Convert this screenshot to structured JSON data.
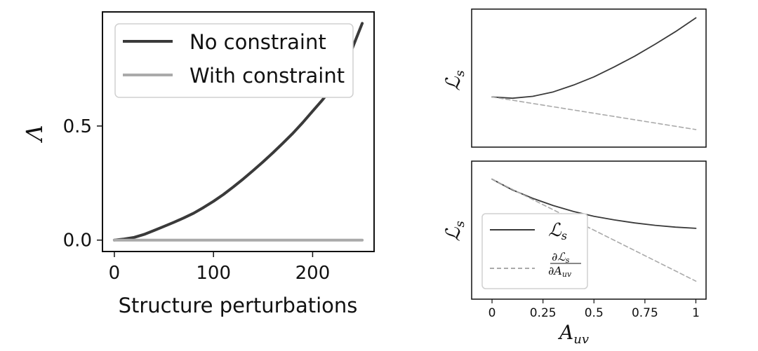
{
  "chart_data": [
    {
      "type": "line",
      "xlabel": "Structure perturbations",
      "ylabel": "Λ",
      "xlim": [
        -12,
        262
      ],
      "ylim": [
        -0.05,
        1.0
      ],
      "xticks": [
        0,
        100,
        200
      ],
      "yticks": [
        0.0,
        0.5
      ],
      "ytick_labels": [
        "0.0",
        "0.5"
      ],
      "legend_position": "top-left",
      "series": [
        {
          "name": "No constraint",
          "color": "#3a3a3a",
          "x": [
            0,
            10,
            20,
            30,
            40,
            50,
            60,
            70,
            80,
            90,
            100,
            110,
            120,
            130,
            140,
            150,
            160,
            170,
            180,
            190,
            200,
            210,
            220,
            230,
            240,
            250
          ],
          "y": [
            0.0,
            0.005,
            0.012,
            0.025,
            0.042,
            0.06,
            0.078,
            0.097,
            0.118,
            0.143,
            0.17,
            0.2,
            0.233,
            0.268,
            0.305,
            0.343,
            0.383,
            0.425,
            0.468,
            0.515,
            0.565,
            0.615,
            0.67,
            0.75,
            0.84,
            0.95
          ]
        },
        {
          "name": "With constraint",
          "color": "#aaaaaa",
          "x": [
            0,
            250
          ],
          "y": [
            0.0,
            0.0
          ]
        }
      ]
    },
    {
      "type": "line",
      "xlabel": "",
      "ylabel": "ℒs",
      "xlim": [
        -0.1,
        1.05
      ],
      "ylim": [
        -0.1,
        1.0
      ],
      "series": [
        {
          "style": "solid",
          "color": "#3a3a3a",
          "x": [
            0,
            0.1,
            0.2,
            0.3,
            0.4,
            0.5,
            0.6,
            0.7,
            0.8,
            0.9,
            1.0
          ],
          "y": [
            0.3,
            0.29,
            0.305,
            0.34,
            0.395,
            0.46,
            0.54,
            0.625,
            0.72,
            0.82,
            0.93
          ]
        },
        {
          "style": "dashed",
          "color": "#aaaaaa",
          "x": [
            0,
            1.0
          ],
          "y": [
            0.3,
            0.04
          ]
        }
      ]
    },
    {
      "type": "line",
      "xlabel": "A_uv",
      "ylabel": "ℒs",
      "xlim": [
        -0.1,
        1.05
      ],
      "ylim": [
        -0.15,
        1.0
      ],
      "xticks": [
        0,
        0.25,
        0.5,
        0.75,
        1
      ],
      "xtick_labels": [
        "0",
        "0.25",
        "0.5",
        "0.75",
        "1"
      ],
      "legend_position": "bottom-left",
      "series": [
        {
          "name": "ℒs",
          "style": "solid",
          "color": "#3a3a3a",
          "x": [
            0,
            0.1,
            0.2,
            0.3,
            0.4,
            0.5,
            0.6,
            0.7,
            0.8,
            0.9,
            1.0
          ],
          "y": [
            0.85,
            0.76,
            0.69,
            0.63,
            0.58,
            0.54,
            0.51,
            0.485,
            0.465,
            0.45,
            0.44
          ]
        },
        {
          "name": "∂ℒs/∂Auv",
          "style": "dashed",
          "color": "#aaaaaa",
          "x": [
            0,
            1.0
          ],
          "y": [
            0.85,
            0.0
          ]
        }
      ]
    }
  ]
}
